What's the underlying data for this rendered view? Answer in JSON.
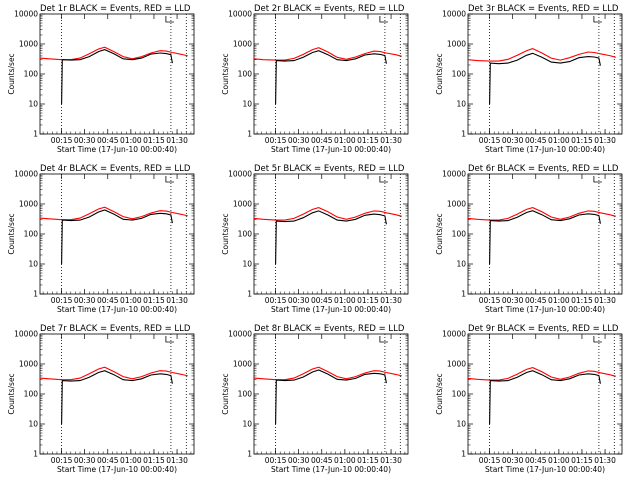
{
  "chart_data": [
    {
      "type": "line",
      "title": "Det 1r BLACK = Events, RED = LLD",
      "xlabel": "Start Time (17-Jun-10 00:00:40)",
      "ylabel": "Counts/sec",
      "yscale": "log",
      "ylim": [
        1,
        10000
      ],
      "xlim": [
        0,
        100
      ],
      "x_tick_labels": [
        "00:15",
        "00:30",
        "00:45",
        "01:00",
        "01:15",
        "01:30"
      ],
      "y_tick_labels": [
        "1",
        "10",
        "100",
        "1000",
        "10000"
      ],
      "markers": [
        14,
        85,
        95
      ],
      "series": [
        {
          "color": "#000000",
          "x": [
            14,
            14.5,
            20,
            26,
            32,
            38,
            42,
            48,
            54,
            60,
            66,
            72,
            78,
            82,
            85,
            86
          ],
          "values": [
            10,
            300,
            290,
            300,
            380,
            560,
            650,
            470,
            320,
            300,
            340,
            460,
            500,
            480,
            440,
            230
          ]
        },
        {
          "color": "#ff0000",
          "x": [
            0,
            6,
            14,
            20,
            26,
            32,
            38,
            42,
            48,
            54,
            60,
            66,
            72,
            78,
            82,
            86,
            92,
            96
          ],
          "values": [
            340,
            320,
            300,
            300,
            340,
            470,
            680,
            780,
            560,
            380,
            320,
            380,
            500,
            600,
            580,
            520,
            450,
            400
          ]
        }
      ]
    },
    {
      "type": "line",
      "title": "Det 2r BLACK = Events, RED = LLD",
      "xlabel": "Start Time (17-Jun-10 00:00:40)",
      "ylabel": "Counts/sec",
      "yscale": "log",
      "ylim": [
        1,
        10000
      ],
      "xlim": [
        0,
        100
      ],
      "x_tick_labels": [
        "00:15",
        "00:30",
        "00:45",
        "01:00",
        "01:15",
        "01:30"
      ],
      "y_tick_labels": [
        "1",
        "10",
        "100",
        "1000",
        "10000"
      ],
      "markers": [
        14,
        85,
        95
      ],
      "series": [
        {
          "color": "#000000",
          "x": [
            14,
            14.5,
            20,
            26,
            32,
            38,
            42,
            48,
            54,
            60,
            66,
            72,
            78,
            82,
            85,
            86
          ],
          "values": [
            10,
            280,
            270,
            280,
            360,
            520,
            600,
            440,
            300,
            280,
            320,
            430,
            470,
            450,
            410,
            220
          ]
        },
        {
          "color": "#ff0000",
          "x": [
            0,
            6,
            14,
            20,
            26,
            32,
            38,
            42,
            48,
            54,
            60,
            66,
            72,
            78,
            82,
            86,
            92,
            96
          ],
          "values": [
            320,
            300,
            290,
            290,
            330,
            450,
            650,
            750,
            540,
            360,
            310,
            370,
            480,
            580,
            560,
            500,
            440,
            390
          ]
        }
      ]
    },
    {
      "type": "line",
      "title": "Det 3r BLACK = Events, RED = LLD",
      "xlabel": "Start Time (17-Jun-10 00:00:40)",
      "ylabel": "Counts/sec",
      "yscale": "log",
      "ylim": [
        1,
        10000
      ],
      "xlim": [
        0,
        100
      ],
      "x_tick_labels": [
        "00:15",
        "00:30",
        "00:45",
        "01:00",
        "01:15",
        "01:30"
      ],
      "y_tick_labels": [
        "1",
        "10",
        "100",
        "1000",
        "10000"
      ],
      "markers": [
        14,
        85,
        95
      ],
      "series": [
        {
          "color": "#000000",
          "x": [
            14,
            14.5,
            20,
            26,
            32,
            38,
            42,
            48,
            54,
            60,
            66,
            72,
            78,
            82,
            85,
            86
          ],
          "values": [
            10,
            230,
            220,
            230,
            290,
            420,
            490,
            360,
            250,
            230,
            260,
            350,
            380,
            370,
            340,
            190
          ]
        },
        {
          "color": "#ff0000",
          "x": [
            0,
            6,
            14,
            20,
            26,
            32,
            38,
            42,
            48,
            54,
            60,
            66,
            72,
            78,
            82,
            86,
            92,
            96
          ],
          "values": [
            300,
            280,
            270,
            270,
            310,
            420,
            600,
            700,
            500,
            340,
            290,
            350,
            450,
            540,
            520,
            470,
            410,
            360
          ]
        }
      ]
    },
    {
      "type": "line",
      "title": "Det 4r BLACK = Events, RED = LLD",
      "xlabel": "Start Time (17-Jun-10 00:00:40)",
      "ylabel": "Counts/sec",
      "yscale": "log",
      "ylim": [
        1,
        10000
      ],
      "xlim": [
        0,
        100
      ],
      "x_tick_labels": [
        "00:15",
        "00:30",
        "00:45",
        "01:00",
        "01:15",
        "01:30"
      ],
      "y_tick_labels": [
        "1",
        "10",
        "100",
        "1000",
        "10000"
      ],
      "markers": [
        14,
        85,
        95
      ],
      "series": [
        {
          "color": "#000000",
          "x": [
            14,
            14.5,
            20,
            26,
            32,
            38,
            42,
            48,
            54,
            60,
            66,
            72,
            78,
            82,
            85,
            86
          ],
          "values": [
            10,
            290,
            280,
            290,
            370,
            540,
            630,
            460,
            310,
            290,
            330,
            450,
            490,
            470,
            430,
            230
          ]
        },
        {
          "color": "#ff0000",
          "x": [
            0,
            6,
            14,
            20,
            26,
            32,
            38,
            42,
            48,
            54,
            60,
            66,
            72,
            78,
            82,
            86,
            92,
            96
          ],
          "values": [
            340,
            320,
            300,
            300,
            340,
            470,
            680,
            780,
            560,
            380,
            320,
            380,
            500,
            600,
            580,
            520,
            450,
            400
          ]
        }
      ]
    },
    {
      "type": "line",
      "title": "Det 5r BLACK = Events, RED = LLD",
      "xlabel": "Start Time (17-Jun-10 00:00:40)",
      "ylabel": "Counts/sec",
      "yscale": "log",
      "ylim": [
        1,
        10000
      ],
      "xlim": [
        0,
        100
      ],
      "x_tick_labels": [
        "00:15",
        "00:30",
        "00:45",
        "01:00",
        "01:15",
        "01:30"
      ],
      "y_tick_labels": [
        "1",
        "10",
        "100",
        "1000",
        "10000"
      ],
      "markers": [
        14,
        85,
        95
      ],
      "series": [
        {
          "color": "#000000",
          "x": [
            14,
            14.5,
            20,
            26,
            32,
            38,
            42,
            48,
            54,
            60,
            66,
            72,
            78,
            82,
            85,
            86
          ],
          "values": [
            10,
            270,
            260,
            270,
            350,
            510,
            590,
            430,
            290,
            270,
            310,
            420,
            460,
            440,
            400,
            210
          ]
        },
        {
          "color": "#ff0000",
          "x": [
            0,
            6,
            14,
            20,
            26,
            32,
            38,
            42,
            48,
            54,
            60,
            66,
            72,
            78,
            82,
            86,
            92,
            96
          ],
          "values": [
            330,
            310,
            290,
            290,
            330,
            460,
            660,
            760,
            550,
            370,
            310,
            370,
            490,
            590,
            570,
            510,
            440,
            390
          ]
        }
      ]
    },
    {
      "type": "line",
      "title": "Det 6r BLACK = Events, RED = LLD",
      "xlabel": "Start Time (17-Jun-10 00:00:40)",
      "ylabel": "Counts/sec",
      "yscale": "log",
      "ylim": [
        1,
        10000
      ],
      "xlim": [
        0,
        100
      ],
      "x_tick_labels": [
        "00:15",
        "00:30",
        "00:45",
        "01:00",
        "01:15",
        "01:30"
      ],
      "y_tick_labels": [
        "1",
        "10",
        "100",
        "1000",
        "10000"
      ],
      "markers": [
        14,
        85,
        95
      ],
      "series": [
        {
          "color": "#000000",
          "x": [
            14,
            14.5,
            20,
            26,
            32,
            38,
            42,
            48,
            54,
            60,
            66,
            72,
            78,
            82,
            85,
            86
          ],
          "values": [
            10,
            280,
            270,
            280,
            360,
            520,
            600,
            440,
            300,
            280,
            320,
            430,
            470,
            450,
            410,
            220
          ]
        },
        {
          "color": "#ff0000",
          "x": [
            0,
            6,
            14,
            20,
            26,
            32,
            38,
            42,
            48,
            54,
            60,
            66,
            72,
            78,
            82,
            86,
            92,
            96
          ],
          "values": [
            330,
            310,
            290,
            290,
            330,
            460,
            660,
            760,
            550,
            370,
            310,
            370,
            490,
            590,
            570,
            510,
            440,
            390
          ]
        }
      ]
    },
    {
      "type": "line",
      "title": "Det 7r BLACK = Events, RED = LLD",
      "xlabel": "Start Time (17-Jun-10 00:00:40)",
      "ylabel": "Counts/sec",
      "yscale": "log",
      "ylim": [
        1,
        10000
      ],
      "xlim": [
        0,
        100
      ],
      "x_tick_labels": [
        "00:15",
        "00:30",
        "00:45",
        "01:00",
        "01:15",
        "01:30"
      ],
      "y_tick_labels": [
        "1",
        "10",
        "100",
        "1000",
        "10000"
      ],
      "markers": [
        14,
        85,
        95
      ],
      "series": [
        {
          "color": "#000000",
          "x": [
            14,
            14.5,
            20,
            26,
            32,
            38,
            42,
            48,
            54,
            60,
            66,
            72,
            78,
            82,
            85,
            86
          ],
          "values": [
            10,
            280,
            270,
            280,
            360,
            520,
            600,
            440,
            300,
            280,
            320,
            430,
            470,
            450,
            410,
            220
          ]
        },
        {
          "color": "#ff0000",
          "x": [
            0,
            6,
            14,
            20,
            26,
            32,
            38,
            42,
            48,
            54,
            60,
            66,
            72,
            78,
            82,
            86,
            92,
            96
          ],
          "values": [
            340,
            320,
            300,
            300,
            340,
            470,
            680,
            780,
            560,
            380,
            320,
            380,
            500,
            600,
            580,
            520,
            450,
            400
          ]
        }
      ]
    },
    {
      "type": "line",
      "title": "Det 8r BLACK = Events, RED = LLD",
      "xlabel": "Start Time (17-Jun-10 00:00:40)",
      "ylabel": "Counts/sec",
      "yscale": "log",
      "ylim": [
        1,
        10000
      ],
      "xlim": [
        0,
        100
      ],
      "x_tick_labels": [
        "00:15",
        "00:30",
        "00:45",
        "01:00",
        "01:15",
        "01:30"
      ],
      "y_tick_labels": [
        "1",
        "10",
        "100",
        "1000",
        "10000"
      ],
      "markers": [
        14,
        85,
        95
      ],
      "series": [
        {
          "color": "#000000",
          "x": [
            14,
            14.5,
            20,
            26,
            32,
            38,
            42,
            48,
            54,
            60,
            66,
            72,
            78,
            82,
            85,
            86
          ],
          "values": [
            10,
            290,
            280,
            290,
            370,
            540,
            630,
            460,
            310,
            290,
            330,
            450,
            490,
            470,
            430,
            230
          ]
        },
        {
          "color": "#ff0000",
          "x": [
            0,
            6,
            14,
            20,
            26,
            32,
            38,
            42,
            48,
            54,
            60,
            66,
            72,
            78,
            82,
            86,
            92,
            96
          ],
          "values": [
            340,
            320,
            300,
            300,
            340,
            470,
            680,
            780,
            560,
            380,
            320,
            380,
            500,
            600,
            580,
            520,
            450,
            400
          ]
        }
      ]
    },
    {
      "type": "line",
      "title": "Det 9r BLACK = Events, RED = LLD",
      "xlabel": "Start Time (17-Jun-10 00:00:40)",
      "ylabel": "Counts/sec",
      "yscale": "log",
      "ylim": [
        1,
        10000
      ],
      "xlim": [
        0,
        100
      ],
      "x_tick_labels": [
        "00:15",
        "00:30",
        "00:45",
        "01:00",
        "01:15",
        "01:30"
      ],
      "y_tick_labels": [
        "1",
        "10",
        "100",
        "1000",
        "10000"
      ],
      "markers": [
        14,
        85,
        95
      ],
      "series": [
        {
          "color": "#000000",
          "x": [
            14,
            14.5,
            20,
            26,
            32,
            38,
            42,
            48,
            54,
            60,
            66,
            72,
            78,
            82,
            85,
            86
          ],
          "values": [
            10,
            280,
            270,
            280,
            360,
            520,
            600,
            440,
            300,
            280,
            320,
            430,
            470,
            450,
            410,
            220
          ]
        },
        {
          "color": "#ff0000",
          "x": [
            0,
            6,
            14,
            20,
            26,
            32,
            38,
            42,
            48,
            54,
            60,
            66,
            72,
            78,
            82,
            86,
            92,
            96
          ],
          "values": [
            330,
            310,
            290,
            290,
            330,
            460,
            660,
            760,
            550,
            370,
            310,
            370,
            490,
            590,
            570,
            510,
            440,
            390
          ]
        }
      ]
    }
  ]
}
